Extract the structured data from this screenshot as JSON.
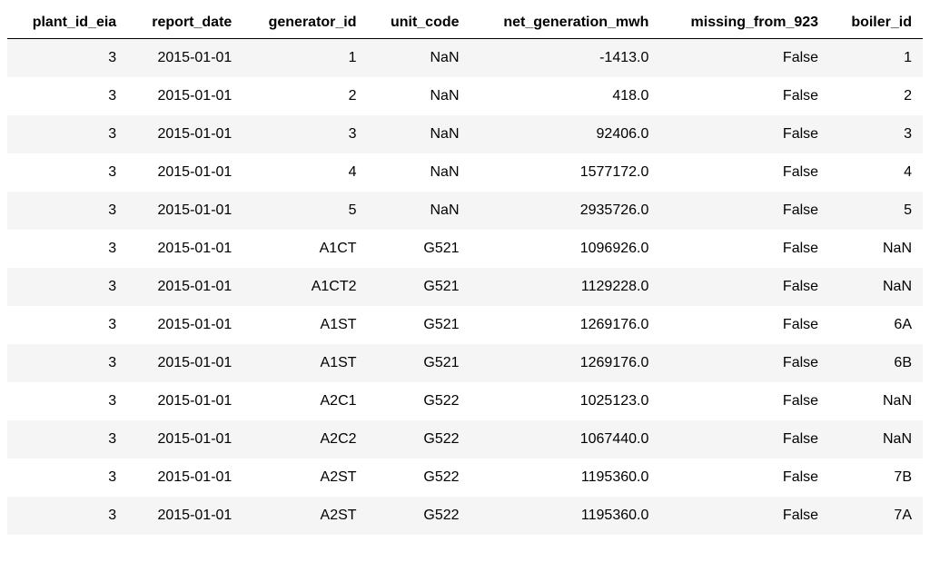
{
  "table": {
    "columns": [
      "plant_id_eia",
      "report_date",
      "generator_id",
      "unit_code",
      "net_generation_mwh",
      "missing_from_923",
      "boiler_id"
    ],
    "rows": [
      [
        "3",
        "2015-01-01",
        "1",
        "NaN",
        "-1413.0",
        "False",
        "1"
      ],
      [
        "3",
        "2015-01-01",
        "2",
        "NaN",
        "418.0",
        "False",
        "2"
      ],
      [
        "3",
        "2015-01-01",
        "3",
        "NaN",
        "92406.0",
        "False",
        "3"
      ],
      [
        "3",
        "2015-01-01",
        "4",
        "NaN",
        "1577172.0",
        "False",
        "4"
      ],
      [
        "3",
        "2015-01-01",
        "5",
        "NaN",
        "2935726.0",
        "False",
        "5"
      ],
      [
        "3",
        "2015-01-01",
        "A1CT",
        "G521",
        "1096926.0",
        "False",
        "NaN"
      ],
      [
        "3",
        "2015-01-01",
        "A1CT2",
        "G521",
        "1129228.0",
        "False",
        "NaN"
      ],
      [
        "3",
        "2015-01-01",
        "A1ST",
        "G521",
        "1269176.0",
        "False",
        "6A"
      ],
      [
        "3",
        "2015-01-01",
        "A1ST",
        "G521",
        "1269176.0",
        "False",
        "6B"
      ],
      [
        "3",
        "2015-01-01",
        "A2C1",
        "G522",
        "1025123.0",
        "False",
        "NaN"
      ],
      [
        "3",
        "2015-01-01",
        "A2C2",
        "G522",
        "1067440.0",
        "False",
        "NaN"
      ],
      [
        "3",
        "2015-01-01",
        "A2ST",
        "G522",
        "1195360.0",
        "False",
        "7B"
      ],
      [
        "3",
        "2015-01-01",
        "A2ST",
        "G522",
        "1195360.0",
        "False",
        "7A"
      ]
    ],
    "header_border_color": "#000000",
    "row_odd_bg": "#f5f5f5",
    "row_even_bg": "#ffffff",
    "text_color": "#000000",
    "font_size": 16
  }
}
